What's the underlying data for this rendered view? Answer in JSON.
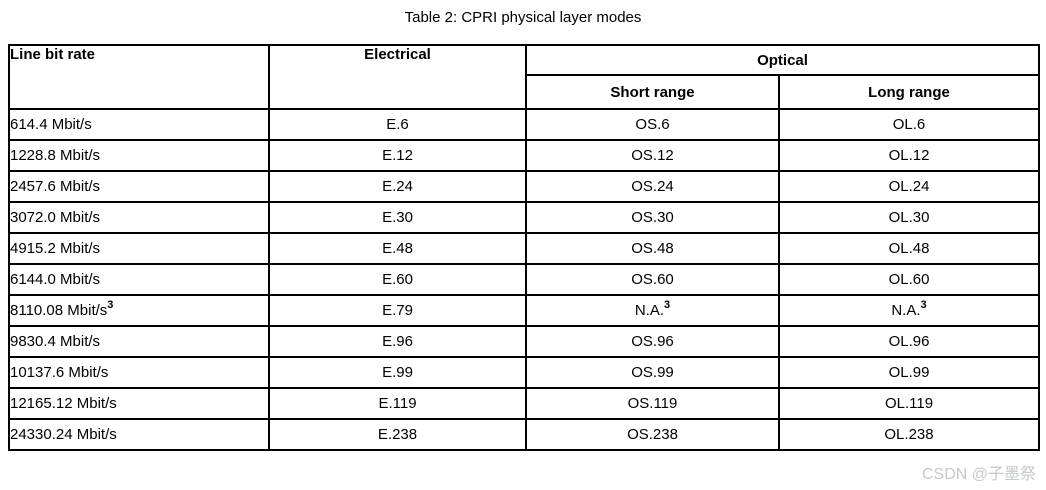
{
  "title": "Table 2: CPRI physical layer modes",
  "table": {
    "headers": {
      "line_bit_rate": "Line bit rate",
      "electrical": "Electrical",
      "optical": "Optical",
      "short_range": "Short range",
      "long_range": "Long range"
    },
    "rows": [
      {
        "rate": "614.4 Mbit/s",
        "rate_sup": "",
        "electrical": "E.6",
        "short": "OS.6",
        "short_sup": "",
        "long": "OL.6",
        "long_sup": ""
      },
      {
        "rate": "1228.8 Mbit/s",
        "rate_sup": "",
        "electrical": "E.12",
        "short": "OS.12",
        "short_sup": "",
        "long": "OL.12",
        "long_sup": ""
      },
      {
        "rate": "2457.6 Mbit/s",
        "rate_sup": "",
        "electrical": "E.24",
        "short": "OS.24",
        "short_sup": "",
        "long": "OL.24",
        "long_sup": ""
      },
      {
        "rate": "3072.0 Mbit/s",
        "rate_sup": "",
        "electrical": "E.30",
        "short": "OS.30",
        "short_sup": "",
        "long": "OL.30",
        "long_sup": ""
      },
      {
        "rate": "4915.2 Mbit/s",
        "rate_sup": "",
        "electrical": "E.48",
        "short": "OS.48",
        "short_sup": "",
        "long": "OL.48",
        "long_sup": ""
      },
      {
        "rate": "6144.0 Mbit/s",
        "rate_sup": "",
        "electrical": "E.60",
        "short": "OS.60",
        "short_sup": "",
        "long": "OL.60",
        "long_sup": ""
      },
      {
        "rate": "8110.08 Mbit/s",
        "rate_sup": "3",
        "electrical": "E.79",
        "short": "N.A.",
        "short_sup": "3",
        "long": "N.A.",
        "long_sup": "3"
      },
      {
        "rate": "9830.4 Mbit/s",
        "rate_sup": "",
        "electrical": "E.96",
        "short": "OS.96",
        "short_sup": "",
        "long": "OL.96",
        "long_sup": ""
      },
      {
        "rate": "10137.6 Mbit/s",
        "rate_sup": "",
        "electrical": "E.99",
        "short": "OS.99",
        "short_sup": "",
        "long": "OL.99",
        "long_sup": ""
      },
      {
        "rate": "12165.12 Mbit/s",
        "rate_sup": "",
        "electrical": "E.119",
        "short": "OS.119",
        "short_sup": "",
        "long": "OL.119",
        "long_sup": ""
      },
      {
        "rate": "24330.24 Mbit/s",
        "rate_sup": "",
        "electrical": "E.238",
        "short": "OS.238",
        "short_sup": "",
        "long": "OL.238",
        "long_sup": ""
      }
    ]
  },
  "watermark": "CSDN @子墨祭",
  "colors": {
    "background": "#ffffff",
    "text": "#000000",
    "border": "#000000",
    "watermark": "#c5c8cd"
  }
}
